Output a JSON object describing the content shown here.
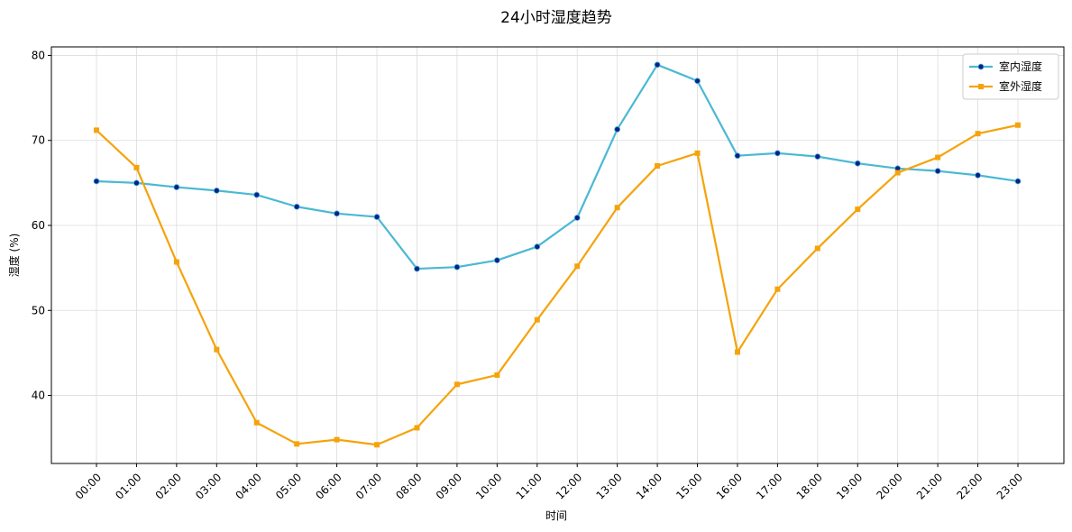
{
  "chart_data": {
    "type": "line",
    "title": "24小时湿度趋势",
    "xlabel": "时间",
    "ylabel": "湿度 (%)",
    "categories": [
      "00:00",
      "01:00",
      "02:00",
      "03:00",
      "04:00",
      "05:00",
      "06:00",
      "07:00",
      "08:00",
      "09:00",
      "10:00",
      "11:00",
      "12:00",
      "13:00",
      "14:00",
      "15:00",
      "16:00",
      "17:00",
      "18:00",
      "19:00",
      "20:00",
      "21:00",
      "22:00",
      "23:00"
    ],
    "ylim": [
      32,
      81
    ],
    "yticks": [
      40,
      50,
      60,
      70,
      80
    ],
    "grid": true,
    "legend_position": "top-right",
    "series": [
      {
        "name": "室内湿度",
        "color": "#4bb8d4",
        "marker": "circle",
        "marker_color": "#0b1f8c",
        "values": [
          65.2,
          65.0,
          64.5,
          64.1,
          63.6,
          62.2,
          61.4,
          61.0,
          54.9,
          55.1,
          55.9,
          57.5,
          60.9,
          71.3,
          78.9,
          77.0,
          68.2,
          68.5,
          68.1,
          67.3,
          66.7,
          66.4,
          65.9,
          65.2
        ]
      },
      {
        "name": "室外湿度",
        "color": "#f5a30b",
        "marker": "square",
        "marker_color": "#f5a30b",
        "values": [
          71.2,
          66.8,
          55.7,
          45.4,
          36.8,
          34.3,
          34.8,
          34.2,
          36.2,
          41.3,
          42.4,
          48.9,
          55.2,
          62.1,
          67.0,
          68.5,
          45.1,
          52.5,
          57.3,
          61.9,
          66.2,
          68.0,
          70.8,
          71.8
        ]
      }
    ]
  }
}
